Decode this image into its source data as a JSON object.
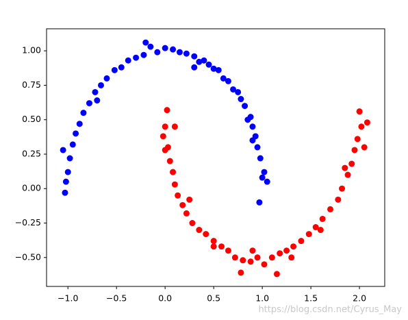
{
  "chart_data": {
    "type": "scatter",
    "xlim": [
      -1.22,
      2.26
    ],
    "ylim": [
      -0.71,
      1.16
    ],
    "xticks": [
      {
        "value": -1,
        "label": "−1.0"
      },
      {
        "value": -0.5,
        "label": "−0.5"
      },
      {
        "value": 0,
        "label": "0.0"
      },
      0.5,
      {
        "value": 1,
        "label": "1.0"
      },
      1.5,
      {
        "value": 2,
        "label": "2.0"
      }
    ],
    "yticks": [
      {
        "value": -0.5,
        "label": "−0.50"
      },
      {
        "value": -0.25,
        "label": "−0.25"
      },
      {
        "value": 0,
        "label": "0.00"
      },
      0.25,
      {
        "value": 0.5,
        "label": "0.50"
      },
      0.75,
      {
        "value": 1,
        "label": "1.00"
      }
    ],
    "series": [
      {
        "color": "#0000ff",
        "x": [
          1.05,
          1.02,
          0.98,
          1.0,
          0.95,
          0.93,
          0.9,
          0.88,
          0.85,
          0.82,
          0.78,
          0.75,
          0.7,
          0.65,
          0.6,
          0.55,
          0.5,
          0.45,
          0.4,
          0.35,
          0.3,
          0.22,
          0.15,
          0.08,
          0.0,
          -0.08,
          -0.15,
          -0.22,
          -0.3,
          -0.38,
          -0.45,
          -0.52,
          -0.6,
          -0.66,
          -0.72,
          -0.78,
          -0.84,
          -0.88,
          -0.92,
          -0.95,
          -0.98,
          -1.0,
          -1.02,
          -1.03,
          -1.05,
          0.97,
          0.9,
          -0.2,
          0.3,
          -0.7
        ],
        "values": [
          0.05,
          0.12,
          0.22,
          0.08,
          0.3,
          0.38,
          0.45,
          0.52,
          0.5,
          0.6,
          0.65,
          0.7,
          0.72,
          0.78,
          0.8,
          0.86,
          0.87,
          0.9,
          0.93,
          0.92,
          0.96,
          0.98,
          0.99,
          1.01,
          1.02,
          0.99,
          1.03,
          0.97,
          0.95,
          0.93,
          0.88,
          0.86,
          0.8,
          0.75,
          0.7,
          0.62,
          0.55,
          0.47,
          0.4,
          0.32,
          0.22,
          0.12,
          0.05,
          -0.03,
          0.28,
          -0.1,
          0.35,
          1.06,
          0.88,
          0.64
        ]
      },
      {
        "color": "#ff0000",
        "x": [
          0.02,
          0.0,
          -0.02,
          0.03,
          0.05,
          0.08,
          0.1,
          0.13,
          0.18,
          0.22,
          0.28,
          0.35,
          0.42,
          0.5,
          0.58,
          0.65,
          0.72,
          0.8,
          0.88,
          0.95,
          1.02,
          1.1,
          1.18,
          1.25,
          1.32,
          1.4,
          1.48,
          1.55,
          1.62,
          1.7,
          1.78,
          1.82,
          1.88,
          1.92,
          1.95,
          1.98,
          2.02,
          2.0,
          2.08,
          0.78,
          1.15,
          0.5,
          1.6,
          0.1,
          0.0,
          0.9,
          1.3,
          0.25,
          1.85,
          2.05
        ],
        "values": [
          0.57,
          0.45,
          0.38,
          0.3,
          0.2,
          0.12,
          0.03,
          -0.05,
          -0.12,
          -0.18,
          -0.25,
          -0.3,
          -0.33,
          -0.38,
          -0.42,
          -0.45,
          -0.5,
          -0.52,
          -0.53,
          -0.5,
          -0.55,
          -0.5,
          -0.47,
          -0.45,
          -0.42,
          -0.38,
          -0.33,
          -0.28,
          -0.22,
          -0.15,
          -0.08,
          0.0,
          0.1,
          0.18,
          0.28,
          0.36,
          0.45,
          0.56,
          0.48,
          -0.61,
          -0.62,
          -0.42,
          -0.3,
          0.45,
          0.28,
          -0.45,
          -0.5,
          -0.08,
          0.15,
          0.3
        ]
      }
    ],
    "watermark": "https://blog.csdn.net/Cyrus_May"
  }
}
